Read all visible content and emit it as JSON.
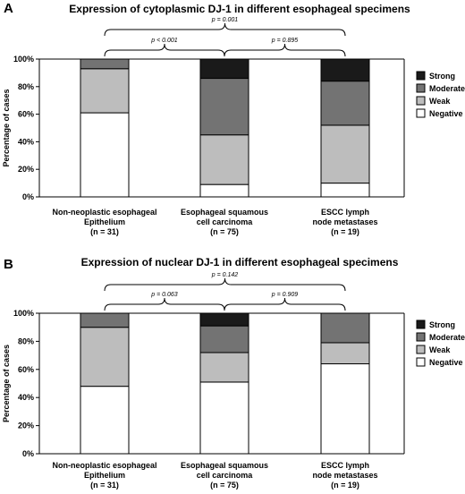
{
  "colors": {
    "Strong": "#1a1a1a",
    "Moderate": "#737373",
    "Weak": "#bdbdbd",
    "Negative": "#ffffff"
  },
  "chart_data": [
    {
      "panel": "A",
      "type": "bar",
      "stacked": true,
      "title": "Expression of cytoplasmic DJ-1 in different esophageal specimens",
      "ylabel": "Percentage of cases",
      "ylim": [
        0,
        100
      ],
      "yticks": [
        "0%",
        "20%",
        "40%",
        "60%",
        "80%",
        "100%"
      ],
      "categories": [
        [
          "Non-neoplastic esophageal",
          "Epithelium",
          "(n = 31)"
        ],
        [
          "Esophageal squamous",
          "cell carcinoma",
          "(n = 75)"
        ],
        [
          "ESCC lymph",
          "node metastases",
          "(n = 19)"
        ]
      ],
      "series": [
        {
          "name": "Negative",
          "values": [
            61,
            9,
            10
          ]
        },
        {
          "name": "Weak",
          "values": [
            32,
            36,
            42
          ]
        },
        {
          "name": "Moderate",
          "values": [
            7,
            41,
            32
          ]
        },
        {
          "name": "Strong",
          "values": [
            0,
            14,
            16
          ]
        }
      ],
      "legend": [
        "Strong",
        "Moderate",
        "Weak",
        "Negative"
      ],
      "comparisons": [
        {
          "from": 0,
          "to": 1,
          "label": "p < 0.001",
          "level": 1
        },
        {
          "from": 1,
          "to": 2,
          "label": "p = 0.895",
          "level": 1
        },
        {
          "from": 0,
          "to": 2,
          "label": "p = 0.001",
          "level": 2
        }
      ]
    },
    {
      "panel": "B",
      "type": "bar",
      "stacked": true,
      "title": "Expression of nuclear DJ-1 in different esophageal specimens",
      "ylabel": "Percentage of cases",
      "ylim": [
        0,
        100
      ],
      "yticks": [
        "0%",
        "20%",
        "40%",
        "60%",
        "80%",
        "100%"
      ],
      "categories": [
        [
          "Non-neoplastic esophageal",
          "Epithelium",
          "(n = 31)"
        ],
        [
          "Esophageal squamous",
          "cell carcinoma",
          "(n = 75)"
        ],
        [
          "ESCC lymph",
          "node metastases",
          "(n = 19)"
        ]
      ],
      "series": [
        {
          "name": "Negative",
          "values": [
            48,
            51,
            64
          ]
        },
        {
          "name": "Weak",
          "values": [
            42,
            21,
            15
          ]
        },
        {
          "name": "Moderate",
          "values": [
            10,
            19,
            21
          ]
        },
        {
          "name": "Strong",
          "values": [
            0,
            9,
            0
          ]
        }
      ],
      "legend": [
        "Strong",
        "Moderate",
        "Weak",
        "Negative"
      ],
      "comparisons": [
        {
          "from": 0,
          "to": 1,
          "label": "p = 0.063",
          "level": 1
        },
        {
          "from": 1,
          "to": 2,
          "label": "p = 0.909",
          "level": 1
        },
        {
          "from": 0,
          "to": 2,
          "label": "p = 0.142",
          "level": 2
        }
      ]
    }
  ]
}
